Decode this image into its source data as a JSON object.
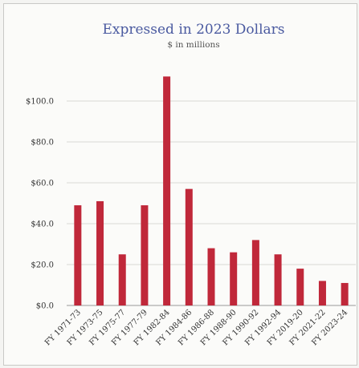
{
  "chart_data": {
    "type": "bar",
    "title": "Expressed in 2023 Dollars",
    "subtitle": "$ in millions",
    "categories": [
      "FY 1971-73",
      "FY 1973-75",
      "FY 1975-77",
      "FY 1977-79",
      "FY 1982-84",
      "FY 1984-86",
      "FY 1986-88",
      "FY 1988-90",
      "FY 1990-92",
      "FY 1992-94",
      "FY 2019-20",
      "FY 2021-22",
      "FY 2023-24"
    ],
    "values": [
      49,
      51,
      25,
      49,
      112,
      57,
      28,
      26,
      32,
      25,
      18,
      12,
      11
    ],
    "ylim": [
      0,
      120
    ],
    "yticks": [
      0,
      20,
      40,
      60,
      80,
      100
    ],
    "ytick_labels": [
      "$0.0",
      "$20.0",
      "$40.0",
      "$60.0",
      "$80.0",
      "$100.0"
    ],
    "grid": true,
    "bar_color": "#c0283a"
  }
}
